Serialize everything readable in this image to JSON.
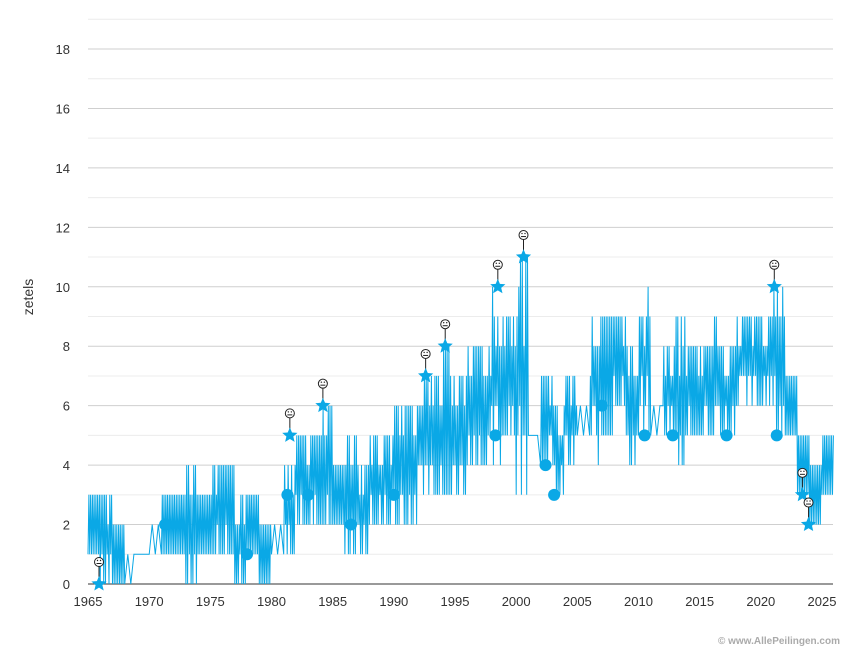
{
  "chart_data": {
    "type": "line",
    "title": "",
    "xlabel": "",
    "ylabel": "zetels",
    "xlim": [
      1965,
      2025.9
    ],
    "ylim": [
      0,
      19
    ],
    "x_ticks": [
      "1965",
      "1970",
      "1975",
      "1980",
      "1985",
      "1990",
      "1995",
      "2000",
      "2005",
      "2010",
      "2015",
      "2020",
      "2025"
    ],
    "y_ticks": [
      "0",
      "2",
      "4",
      "6",
      "8",
      "10",
      "12",
      "14",
      "16",
      "18"
    ],
    "grid": true,
    "color": "#0aa8e6",
    "series": [
      {
        "name": "zetels (yearly low/high envelope)",
        "values": [
          [
            1965,
            1,
            3
          ],
          [
            1966,
            0,
            3
          ],
          [
            1967,
            0,
            2
          ],
          [
            1968,
            0,
            1
          ],
          [
            1969,
            1,
            1
          ],
          [
            1970,
            1,
            2
          ],
          [
            1971,
            1,
            3
          ],
          [
            1972,
            1,
            3
          ],
          [
            1973,
            0,
            4
          ],
          [
            1974,
            1,
            3
          ],
          [
            1975,
            1,
            4
          ],
          [
            1976,
            1,
            4
          ],
          [
            1977,
            0,
            3
          ],
          [
            1978,
            1,
            3
          ],
          [
            1979,
            0,
            2
          ],
          [
            1980,
            1,
            2
          ],
          [
            1981,
            1,
            4
          ],
          [
            1982,
            2,
            5
          ],
          [
            1983,
            2,
            5
          ],
          [
            1984,
            2,
            6
          ],
          [
            1985,
            2,
            4
          ],
          [
            1986,
            1,
            5
          ],
          [
            1987,
            1,
            4
          ],
          [
            1988,
            2,
            5
          ],
          [
            1989,
            2,
            5
          ],
          [
            1990,
            2,
            6
          ],
          [
            1991,
            2,
            6
          ],
          [
            1992,
            3,
            7
          ],
          [
            1993,
            3,
            7
          ],
          [
            1994,
            3,
            8
          ],
          [
            1995,
            3,
            7
          ],
          [
            1996,
            4,
            8
          ],
          [
            1997,
            4,
            8
          ],
          [
            1998,
            4,
            10
          ],
          [
            1999,
            5,
            9
          ],
          [
            2000,
            3,
            11
          ],
          [
            2001,
            5,
            5
          ],
          [
            2002,
            4,
            7
          ],
          [
            2003,
            3,
            6
          ],
          [
            2004,
            4,
            7
          ],
          [
            2005,
            5,
            6
          ],
          [
            2006,
            4,
            9
          ],
          [
            2007,
            5,
            9
          ],
          [
            2008,
            6,
            9
          ],
          [
            2009,
            4,
            8
          ],
          [
            2010,
            5,
            10
          ],
          [
            2011,
            5,
            6
          ],
          [
            2012,
            5,
            8
          ],
          [
            2013,
            4,
            9
          ],
          [
            2014,
            5,
            8
          ],
          [
            2015,
            5,
            8
          ],
          [
            2016,
            5,
            9
          ],
          [
            2017,
            5,
            8
          ],
          [
            2018,
            6,
            9
          ],
          [
            2019,
            6,
            9
          ],
          [
            2020,
            6,
            9
          ],
          [
            2021,
            5,
            10
          ],
          [
            2022,
            5,
            7
          ],
          [
            2023,
            3,
            5
          ],
          [
            2024,
            2,
            4
          ],
          [
            2025,
            3,
            5
          ]
        ]
      }
    ],
    "highs": [
      [
        1965.9,
        0
      ],
      [
        1981.5,
        5
      ],
      [
        1984.2,
        6
      ],
      [
        1992.6,
        7
      ],
      [
        1994.2,
        8
      ],
      [
        1998.5,
        10
      ],
      [
        2000.6,
        11
      ],
      [
        2021.1,
        10
      ],
      [
        2023.4,
        3
      ],
      [
        2023.9,
        2
      ]
    ],
    "lows": [
      [
        1971.3,
        2
      ],
      [
        1978.0,
        1
      ],
      [
        1981.3,
        3
      ],
      [
        1983.0,
        3
      ],
      [
        1986.5,
        2
      ],
      [
        1990.0,
        3
      ],
      [
        1998.3,
        5
      ],
      [
        2002.4,
        4
      ],
      [
        2003.1,
        3
      ],
      [
        2007.0,
        6
      ],
      [
        2010.5,
        5
      ],
      [
        2012.8,
        5
      ],
      [
        2017.2,
        5
      ],
      [
        2021.3,
        5
      ]
    ]
  },
  "credit": "© www.AllePeilingen.com"
}
